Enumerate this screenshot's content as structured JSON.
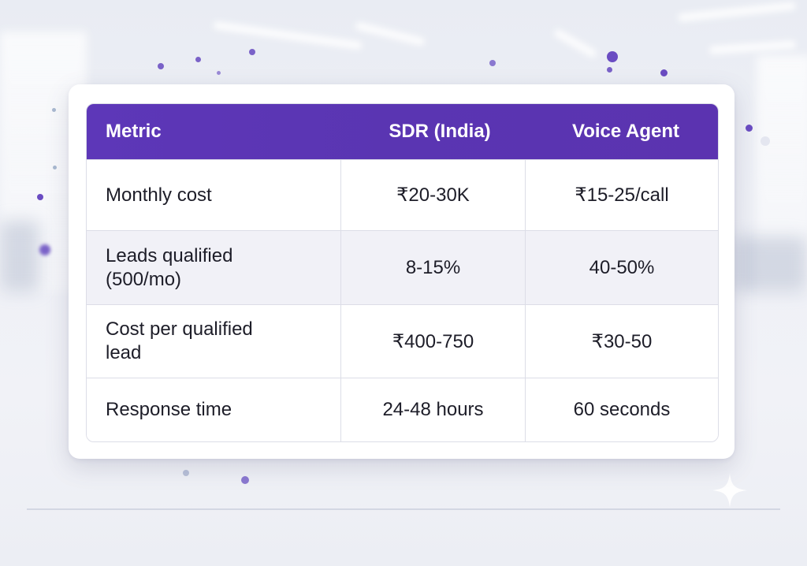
{
  "table": {
    "headers": [
      "Metric",
      "SDR (India)",
      "Voice Agent"
    ],
    "rows": [
      {
        "metric": "Monthly cost",
        "sdr": "₹20-30K",
        "voice": "₹15-25/call"
      },
      {
        "metric_line1": "Leads qualified",
        "metric_line2": "(500/mo)",
        "sdr": "8-15%",
        "voice": "40-50%"
      },
      {
        "metric_line1": "Cost per qualified",
        "metric_line2": "lead",
        "sdr": "₹400-750",
        "voice": "₹30-50"
      },
      {
        "metric": "Response time",
        "sdr": "24-48 hours",
        "voice": "60 seconds"
      }
    ]
  },
  "colors": {
    "header_bg": "#5b35b4",
    "alt_row_bg": "#f1f1f7",
    "accent_dot": "#6a4cc2"
  },
  "icons": {
    "sparkle": "sparkle-icon"
  }
}
